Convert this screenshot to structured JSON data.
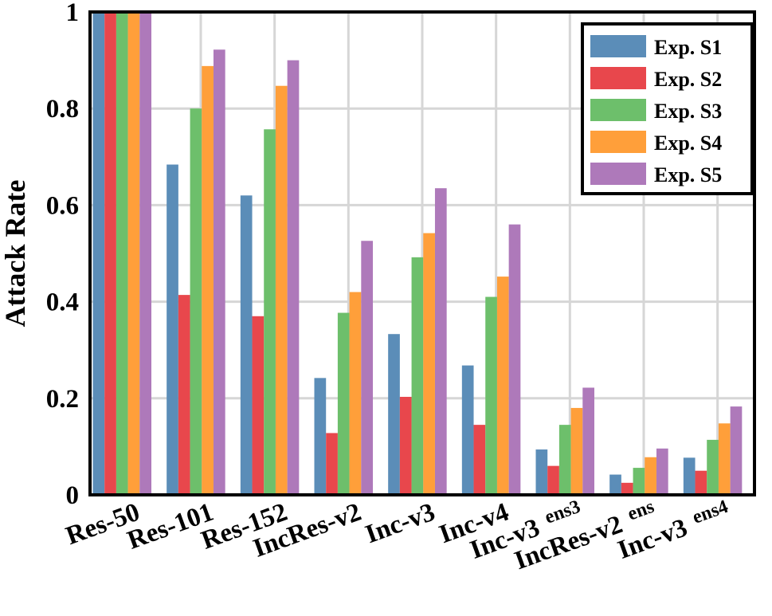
{
  "chart_data": {
    "type": "bar",
    "ylabel": "Attack Rate",
    "xlabel": "",
    "ylim": [
      0,
      1
    ],
    "yticks": [
      "0",
      "0.2",
      "0.4",
      "0.6",
      "0.8",
      "1"
    ],
    "categories": [
      {
        "label": "Res-50",
        "sub": ""
      },
      {
        "label": "Res-101",
        "sub": ""
      },
      {
        "label": "Res-152",
        "sub": ""
      },
      {
        "label": "IncRes-v2",
        "sub": ""
      },
      {
        "label": "Inc-v3",
        "sub": ""
      },
      {
        "label": "Inc-v4",
        "sub": ""
      },
      {
        "label": "Inc-v3",
        "sub": "ens3"
      },
      {
        "label": "IncRes-v2",
        "sub": "ens"
      },
      {
        "label": "Inc-v3",
        "sub": "ens4"
      }
    ],
    "series": [
      {
        "name": "Exp. S1",
        "color": "#5b8db8",
        "values": [
          1.0,
          0.684,
          0.62,
          0.242,
          0.333,
          0.268,
          0.094,
          0.042,
          0.077
        ]
      },
      {
        "name": "Exp. S2",
        "color": "#e8474c",
        "values": [
          1.0,
          0.414,
          0.37,
          0.128,
          0.203,
          0.145,
          0.06,
          0.025,
          0.05
        ]
      },
      {
        "name": "Exp. S3",
        "color": "#6dbf6b",
        "values": [
          1.0,
          0.8,
          0.757,
          0.377,
          0.492,
          0.41,
          0.145,
          0.056,
          0.114
        ]
      },
      {
        "name": "Exp. S4",
        "color": "#ff9f3a",
        "values": [
          1.0,
          0.888,
          0.847,
          0.42,
          0.542,
          0.452,
          0.18,
          0.078,
          0.148
        ]
      },
      {
        "name": "Exp. S5",
        "color": "#ae79ba",
        "values": [
          1.0,
          0.922,
          0.9,
          0.526,
          0.635,
          0.56,
          0.222,
          0.096,
          0.183
        ]
      }
    ],
    "grid": true,
    "legend": "top-right"
  }
}
